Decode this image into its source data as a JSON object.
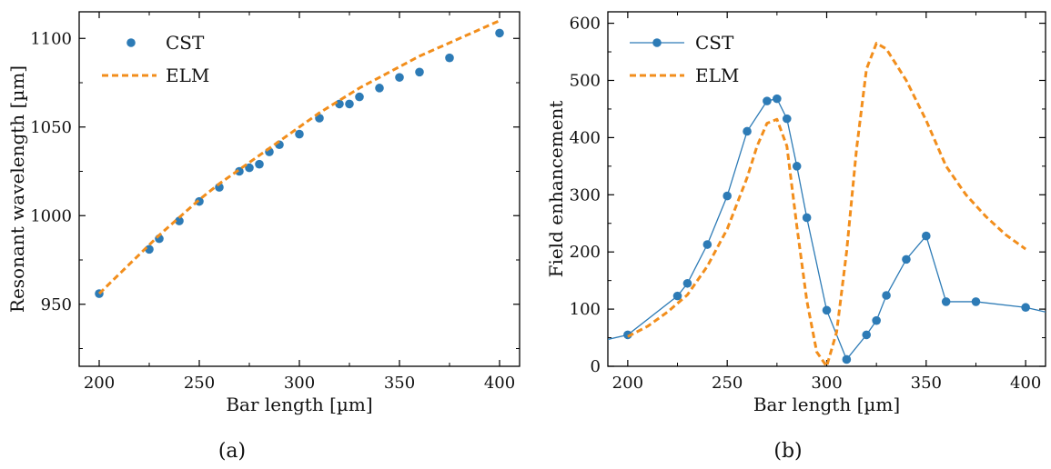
{
  "colors": {
    "cst": "#2d7bb6",
    "elm": "#f28e1c",
    "axis": "#000000"
  },
  "chart_data": [
    {
      "id": "a",
      "type": "scatter",
      "caption": "(a)",
      "title": "",
      "xlabel": "Bar length [µm]",
      "ylabel": "Resonant wavelength [µm]",
      "xlim": [
        190,
        410
      ],
      "ylim": [
        915,
        1115
      ],
      "xticks": [
        200,
        250,
        300,
        350,
        400
      ],
      "yticks": [
        950,
        1000,
        1050,
        1100
      ],
      "grid": false,
      "legend_position": "top-left",
      "series": [
        {
          "name": "CST",
          "style": "markers",
          "x": [
            200,
            225,
            230,
            240,
            250,
            260,
            270,
            275,
            280,
            285,
            290,
            300,
            310,
            320,
            325,
            330,
            340,
            350,
            360,
            375,
            400
          ],
          "y": [
            956,
            981,
            987,
            997,
            1008,
            1016,
            1025,
            1027,
            1029,
            1036,
            1040,
            1046,
            1055,
            1063,
            1063,
            1067,
            1072,
            1078,
            1081,
            1089,
            1103
          ]
        },
        {
          "name": "ELM",
          "style": "dashed",
          "x": [
            200,
            210,
            220,
            230,
            240,
            250,
            260,
            270,
            280,
            290,
            300,
            310,
            320,
            330,
            340,
            350,
            360,
            370,
            380,
            390,
            400
          ],
          "y": [
            956,
            967,
            978,
            989,
            999,
            1009,
            1018,
            1026,
            1034,
            1042,
            1050,
            1058,
            1065,
            1072,
            1078,
            1084,
            1090,
            1095,
            1100,
            1105,
            1110
          ]
        }
      ]
    },
    {
      "id": "b",
      "type": "line",
      "caption": "(b)",
      "title": "",
      "xlabel": "Bar length [µm]",
      "ylabel": "Field enhancement",
      "xlim": [
        190,
        410
      ],
      "ylim": [
        0,
        620
      ],
      "xticks": [
        200,
        250,
        300,
        350,
        400
      ],
      "yticks": [
        0,
        100,
        200,
        300,
        400,
        500,
        600
      ],
      "grid": false,
      "legend_position": "top-left",
      "series": [
        {
          "name": "CST",
          "style": "line-markers",
          "x": [
            190,
            200,
            225,
            230,
            240,
            250,
            260,
            270,
            275,
            280,
            285,
            290,
            300,
            310,
            320,
            325,
            330,
            340,
            350,
            360,
            375,
            400,
            410
          ],
          "y": [
            47,
            55,
            123,
            145,
            213,
            298,
            411,
            464,
            468,
            433,
            350,
            260,
            98,
            12,
            55,
            80,
            124,
            187,
            228,
            113,
            113,
            103,
            95
          ],
          "marker_mask": [
            false,
            true,
            true,
            true,
            true,
            true,
            true,
            true,
            true,
            true,
            true,
            true,
            true,
            true,
            true,
            true,
            true,
            true,
            true,
            true,
            true,
            true,
            false
          ]
        },
        {
          "name": "ELM",
          "style": "dashed",
          "x": [
            200,
            210,
            220,
            230,
            240,
            250,
            260,
            265,
            270,
            275,
            280,
            285,
            290,
            295,
            300,
            305,
            310,
            315,
            320,
            325,
            330,
            340,
            350,
            360,
            370,
            380,
            390,
            400
          ],
          "y": [
            52,
            70,
            95,
            125,
            175,
            240,
            330,
            385,
            425,
            432,
            385,
            245,
            115,
            25,
            0,
            60,
            200,
            380,
            520,
            565,
            555,
            500,
            430,
            350,
            300,
            262,
            230,
            205
          ]
        }
      ]
    }
  ]
}
